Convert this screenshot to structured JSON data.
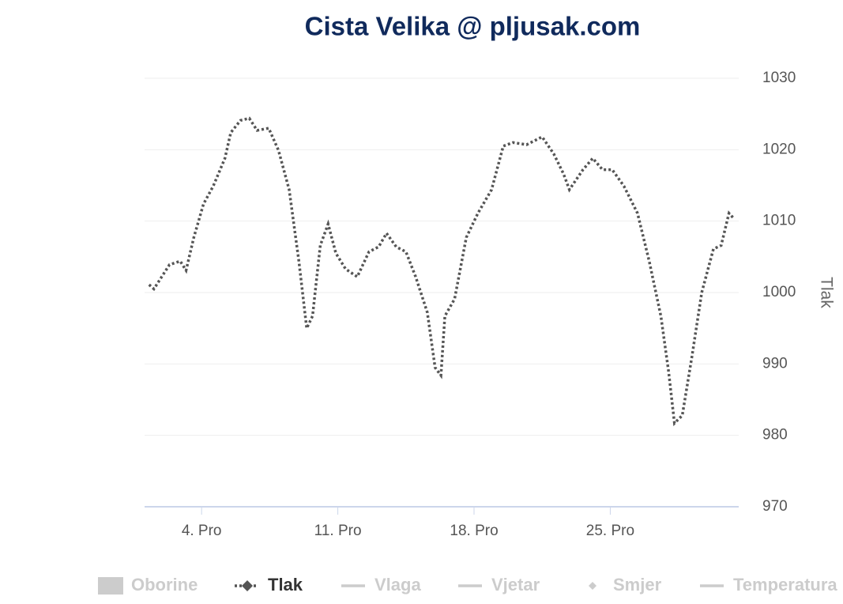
{
  "chart_data": {
    "type": "line",
    "title": "Cista Velika @ pljusak.com",
    "y_label": "Tlak",
    "x": [
      1.3,
      1.55,
      1.95,
      2.35,
      2.9,
      3.2,
      3.6,
      4.1,
      4.6,
      5.2,
      5.5,
      6.0,
      6.45,
      6.85,
      7.45,
      7.95,
      8.5,
      9.0,
      9.4,
      9.7,
      10.1,
      10.5,
      10.9,
      11.4,
      12.0,
      12.6,
      13.1,
      13.5,
      14.0,
      14.5,
      15.0,
      15.6,
      16.0,
      16.3,
      16.5,
      17.0,
      17.6,
      18.2,
      18.9,
      19.5,
      20.0,
      20.7,
      21.5,
      22.1,
      22.6,
      22.9,
      23.6,
      24.1,
      24.6,
      25.1,
      25.7,
      26.4,
      27.0,
      27.6,
      28.0,
      28.3,
      28.7,
      29.2,
      29.7,
      30.3,
      30.7,
      31.1,
      31.3
    ],
    "series": [
      {
        "name": "Oborine",
        "color": "#cccccc",
        "symbol": "rect",
        "visible": false
      },
      {
        "name": "Tlak",
        "color": "#555555",
        "symbol": "diamond-line",
        "visible": true,
        "values": [
          1001.1,
          1000.5,
          1002.2,
          1003.9,
          1004.4,
          1003.1,
          1007.7,
          1012.4,
          1014.9,
          1018.8,
          1022.4,
          1024.1,
          1024.4,
          1022.7,
          1023.0,
          1019.9,
          1014.4,
          1004.4,
          995.0,
          996.7,
          1006.6,
          1009.6,
          1005.5,
          1003.3,
          1002.2,
          1005.7,
          1006.4,
          1008.3,
          1006.4,
          1005.7,
          1002.2,
          997.2,
          989.5,
          988.4,
          996.7,
          999.1,
          1007.7,
          1011.1,
          1014.4,
          1020.5,
          1021.0,
          1020.7,
          1021.8,
          1019.4,
          1016.6,
          1014.4,
          1017.2,
          1018.8,
          1017.2,
          1017.2,
          1014.9,
          1011.1,
          1004.4,
          996.7,
          988.9,
          981.7,
          982.8,
          991.1,
          1000.0,
          1006.1,
          1006.6,
          1011.1,
          1010.5
        ]
      },
      {
        "name": "Vlaga",
        "color": "#cccccc",
        "symbol": "line",
        "visible": false
      },
      {
        "name": "Vjetar",
        "color": "#cccccc",
        "symbol": "line",
        "visible": false
      },
      {
        "name": "Smjer",
        "color": "#cccccc",
        "symbol": "diamond",
        "visible": false
      },
      {
        "name": "Temperatura",
        "color": "#cccccc",
        "symbol": "line",
        "visible": false
      }
    ],
    "xlim": [
      1.07,
      31.6
    ],
    "xticks": [
      {
        "value": 4,
        "label": "4. Pro"
      },
      {
        "value": 11,
        "label": "11. Pro"
      },
      {
        "value": 18,
        "label": "18. Pro"
      },
      {
        "value": 25,
        "label": "25. Pro"
      }
    ],
    "ylim": [
      970,
      1030
    ],
    "yticks": [
      970,
      980,
      990,
      1000,
      1010,
      1020,
      1030
    ],
    "grid": true
  }
}
